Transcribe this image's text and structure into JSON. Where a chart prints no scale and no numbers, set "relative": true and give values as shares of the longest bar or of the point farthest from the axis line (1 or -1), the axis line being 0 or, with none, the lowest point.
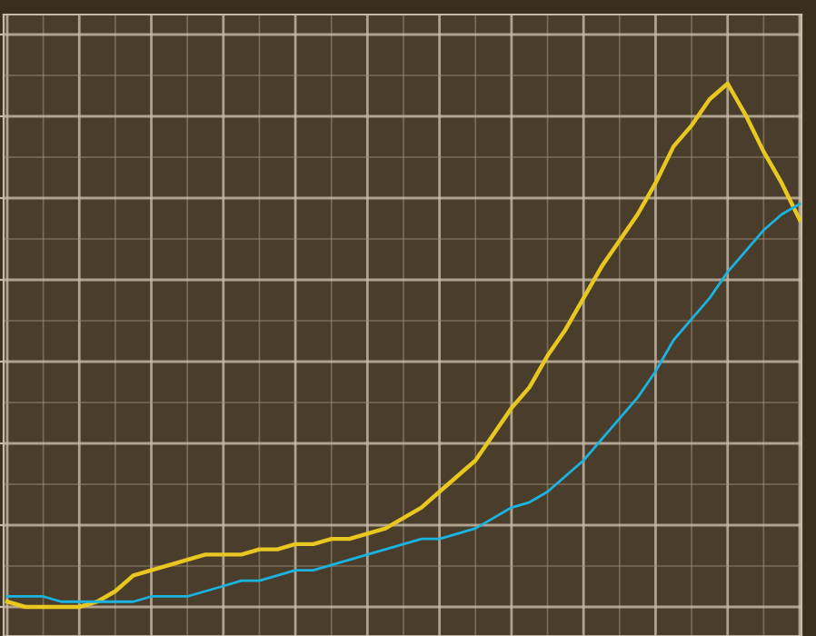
{
  "chart_data": {
    "type": "line",
    "relative": true,
    "grid": true,
    "categories": [
      null,
      null,
      null,
      null,
      null,
      null,
      null,
      null,
      null,
      null,
      null,
      null,
      null,
      null,
      null,
      null,
      null,
      null,
      null,
      null,
      null,
      null,
      null,
      null,
      null,
      null,
      null,
      null,
      null,
      null,
      null,
      null,
      null,
      null,
      null,
      null,
      null,
      null,
      null,
      null,
      null,
      null,
      null,
      null,
      null
    ],
    "series": [
      {
        "color": "#e8c820",
        "values": [
          0.01,
          0,
          0,
          0,
          0,
          0.01,
          0.03,
          0.06,
          0.07,
          0.08,
          0.09,
          0.1,
          0.1,
          0.1,
          0.11,
          0.11,
          0.12,
          0.12,
          0.13,
          0.13,
          0.14,
          0.15,
          0.17,
          0.19,
          0.22,
          0.25,
          0.28,
          0.33,
          0.38,
          0.42,
          0.48,
          0.53,
          0.59,
          0.65,
          0.7,
          0.75,
          0.81,
          0.88,
          0.92,
          0.97,
          1.0,
          0.94,
          0.87,
          0.81,
          0.74
        ]
      },
      {
        "color": "#1ab4e0",
        "values": [
          0.02,
          0.02,
          0.02,
          0.01,
          0.01,
          0.01,
          0.01,
          0.01,
          0.02,
          0.02,
          0.02,
          0.03,
          0.04,
          0.05,
          0.05,
          0.06,
          0.07,
          0.07,
          0.08,
          0.09,
          0.1,
          0.11,
          0.12,
          0.13,
          0.13,
          0.14,
          0.15,
          0.17,
          0.19,
          0.2,
          0.22,
          0.25,
          0.28,
          0.32,
          0.36,
          0.4,
          0.45,
          0.51,
          0.55,
          0.59,
          0.64,
          0.68,
          0.72,
          0.75,
          0.77
        ]
      }
    ]
  }
}
